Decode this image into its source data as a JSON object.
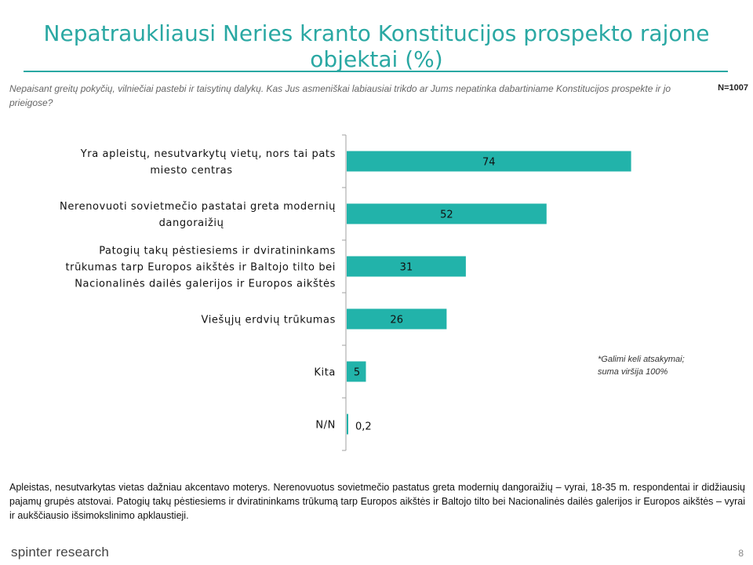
{
  "title": "Nepatraukliausi Neries kranto Konstitucijos prospekto rajone objektai (%)",
  "question": "Nepaisant greitų pokyčių, vilniečiai pastebi ir taisytinų dalykų. Kas Jus asmeniškai labiausiai trikdo ar Jums nepatinka dabartiniame Konstitucijos prospekte ir jo prieigose?",
  "sample_size": "N=1007",
  "note": [
    "*Galimi keli atsakymai;",
    "suma viršija 100%"
  ],
  "summary": "Apleistas, nesutvarkytas vietas dažniau akcentavo moterys. Nerenovuotus sovietmečio pastatus greta modernių dangoraižių – vyrai, 18-35 m. respondentai ir didžiausių pajamų grupės atstovai. Patogių takų pėstiesiems ir dviratininkams trūkumą tarp Europos aikštės ir Baltojo tilto bei Nacionalinės dailės galerijos ir Europos aikštės – vyrai ir aukščiausio išsimokslinimo apklaustieji.",
  "brand": "spinter research",
  "page_number": "8",
  "colors": {
    "accent": "#2aa8a3",
    "bar": "#22b3aa"
  },
  "chart_data": {
    "type": "bar",
    "orientation": "horizontal",
    "categories": [
      [
        "Yra  apleistų, nesutvarkytų vietų, nors tai pats",
        "miesto centras"
      ],
      [
        "Nerenovuoti sovietmečio pastatai  greta modernių",
        "dangoraižių"
      ],
      [
        "Patogių takų pėstiesiems ir dviratininkams",
        "trūkumas tarp Europos aikštės ir Baltojo tilto bei",
        "Nacionalinės dailės galerijos ir Europos aikštės"
      ],
      [
        "Viešųjų erdvių trūkumas"
      ],
      [
        "Kita"
      ],
      [
        "N/N"
      ]
    ],
    "values": [
      74,
      52,
      31,
      26,
      5,
      0.2
    ],
    "value_labels": [
      "74",
      "52",
      "31",
      "26",
      "5",
      "0,2"
    ],
    "xlim": [
      0,
      100
    ],
    "grid": false,
    "legend": "none"
  }
}
